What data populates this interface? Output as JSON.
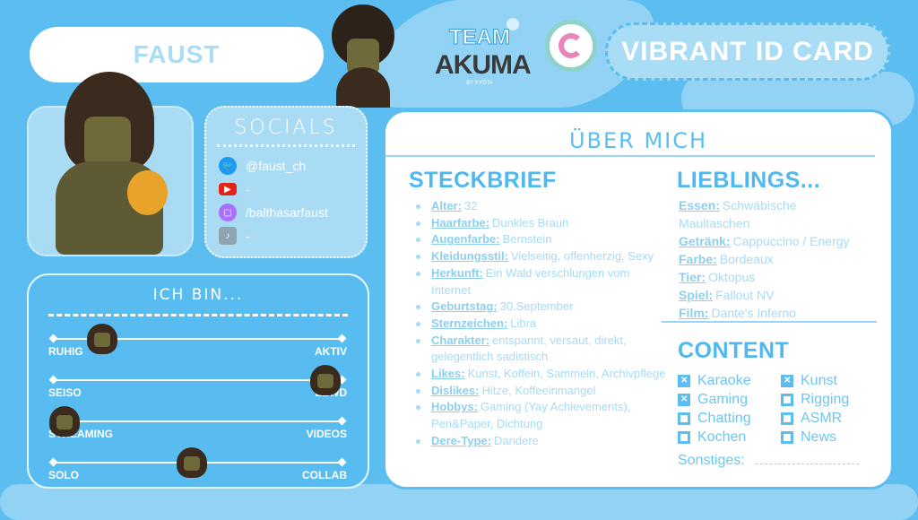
{
  "name": "FAUST",
  "header": {
    "team_label": "TEAM",
    "team_name": "AKUMA",
    "team_sub": "BY KYOTA",
    "card_title": "VIBRANT ID CARD"
  },
  "socials": {
    "title": "SOCIALS",
    "items": [
      {
        "icon": "twitter-icon",
        "value": "@faust_ch",
        "color": "#1d9bf0"
      },
      {
        "icon": "youtube-icon",
        "value": "-",
        "color": "#e62117"
      },
      {
        "icon": "twitch-icon",
        "value": "/balthasarfaust",
        "color": "#a970ff"
      },
      {
        "icon": "tiktok-icon",
        "value": "-",
        "color": "#8fa3b0"
      }
    ]
  },
  "ich_bin": {
    "title": "ICH BIN...",
    "sliders": [
      {
        "left": "RUHIG",
        "right": "AKTIV",
        "value": 0.17
      },
      {
        "left": "SEISO",
        "right": "LEWD",
        "value": 0.94
      },
      {
        "left": "STREAMING",
        "right": "VIDEOS",
        "value": 0.04
      },
      {
        "left": "SOLO",
        "right": "COLLAB",
        "value": 0.48
      }
    ]
  },
  "ueber": {
    "title": "ÜBER MICH",
    "steckbrief": {
      "title": "STECKBRIEF",
      "items": [
        {
          "k": "Alter:",
          "v": "32"
        },
        {
          "k": "Haarfarbe:",
          "v": "Dunkles Braun"
        },
        {
          "k": "Augenfarbe:",
          "v": "Bernstein"
        },
        {
          "k": "Kleidungsstil:",
          "v": "Vielseitig, offenherzig, Sexy"
        },
        {
          "k": "Herkunft:",
          "v": "Ein Wald verschlungen vom Internet"
        },
        {
          "k": "Geburtstag:",
          "v": "30.September"
        },
        {
          "k": "Sternzeichen:",
          "v": "Libra"
        },
        {
          "k": "Charakter:",
          "v": "entspannt, versaut, direkt, gelegentlich sadistisch"
        },
        {
          "k": "Likes:",
          "v": "Kunst, Koffein, Sammeln, Archivpflege"
        },
        {
          "k": "Dislikes:",
          "v": "Hitze, Koffeeinmangel"
        },
        {
          "k": "Hobbys:",
          "v": "Gaming (Yay Achievements), Pen&Paper, Dichtung"
        },
        {
          "k": "Dere-Type:",
          "v": "Dandere"
        }
      ]
    },
    "lieblings": {
      "title": "LIEBLINGS...",
      "items": [
        {
          "k": "Essen:",
          "v": "Schwäbische Maultaschen"
        },
        {
          "k": "Getränk:",
          "v": "Cappuccino / Energy"
        },
        {
          "k": "Farbe:",
          "v": "Bordeaux"
        },
        {
          "k": "Tier:",
          "v": "Oktopus"
        },
        {
          "k": "Spiel:",
          "v": "Fallout NV"
        },
        {
          "k": "Film:",
          "v": "Dante's Inferno"
        }
      ]
    },
    "content": {
      "title": "CONTENT",
      "items": [
        {
          "label": "Karaoke",
          "checked": true
        },
        {
          "label": "Kunst",
          "checked": true
        },
        {
          "label": "Gaming",
          "checked": true
        },
        {
          "label": "Rigging",
          "checked": false
        },
        {
          "label": "Chatting",
          "checked": false
        },
        {
          "label": "ASMR",
          "checked": false
        },
        {
          "label": "Kochen",
          "checked": false
        },
        {
          "label": "News",
          "checked": false
        }
      ],
      "other_label": "Sonstiges:"
    }
  }
}
